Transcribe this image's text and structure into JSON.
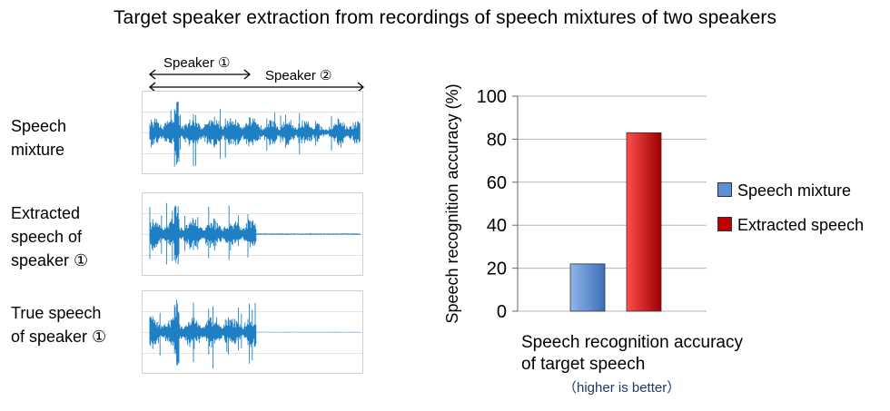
{
  "title": "Target speaker extraction from recordings of speech mixtures of two speakers",
  "waveforms": {
    "speaker1_label": "Speaker ①",
    "speaker2_label": "Speaker ②",
    "rows": [
      {
        "label_line1": "Speech",
        "label_line2": "mixture",
        "label_line3": ""
      },
      {
        "label_line1": "Extracted",
        "label_line2": "speech of",
        "label_line3": "speaker ①"
      },
      {
        "label_line1": "True speech",
        "label_line2": "of speaker ①",
        "label_line3": ""
      }
    ],
    "wave_color": "#1f7fc4"
  },
  "chart_data": {
    "type": "bar",
    "categories": [
      "Speech mixture",
      "Extracted speech"
    ],
    "values": [
      22,
      83
    ],
    "colors": [
      "#5b8fd6",
      "#c00000"
    ],
    "ylabel": "Speech recognition accuracy (%)",
    "xlabel_line1": "Speech recognition accuracy",
    "xlabel_line2": "of target speech",
    "note": "（higher is better）",
    "ylim": [
      0,
      100
    ],
    "yticks": [
      0,
      20,
      40,
      60,
      80,
      100
    ],
    "grid": true,
    "legend_position": "right"
  }
}
